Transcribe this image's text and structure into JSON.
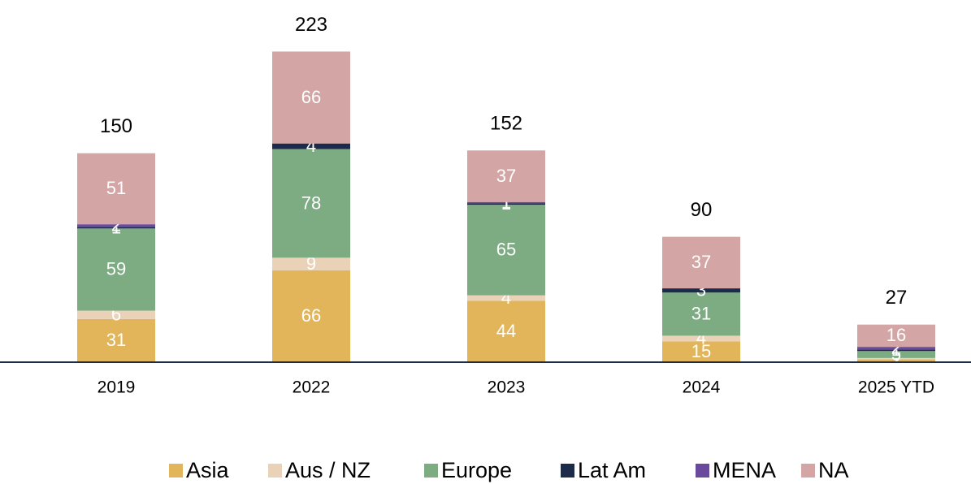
{
  "chart_data": {
    "type": "stacked_bar",
    "categories": [
      "2019",
      "2022",
      "2023",
      "2024",
      "2025 YTD"
    ],
    "series": [
      {
        "name": "Asia",
        "color": "#e3b55a",
        "values": [
          31,
          66,
          44,
          15,
          2
        ]
      },
      {
        "name": "Aus / NZ",
        "color": "#ead2b8",
        "values": [
          6,
          9,
          4,
          4,
          1
        ]
      },
      {
        "name": "Europe",
        "color": "#7dab82",
        "values": [
          59,
          78,
          65,
          31,
          5
        ]
      },
      {
        "name": "Lat Am",
        "color": "#1c2b4a",
        "values": [
          1,
          4,
          1,
          3,
          1
        ]
      },
      {
        "name": "MENA",
        "color": "#6a4a9c",
        "values": [
          2,
          0,
          1,
          0,
          2
        ]
      },
      {
        "name": "NA",
        "color": "#d4a5a5",
        "values": [
          51,
          66,
          37,
          37,
          16
        ]
      }
    ],
    "totals": [
      150,
      223,
      152,
      90,
      27
    ],
    "ylim": [
      0,
      260
    ],
    "legend": "bottom"
  }
}
